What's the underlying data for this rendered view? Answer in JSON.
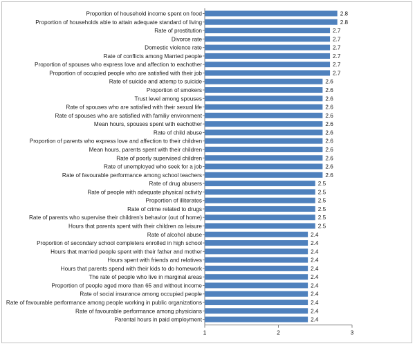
{
  "chart_data": {
    "type": "bar",
    "orientation": "horizontal",
    "bar_color": "#4f81bd",
    "categories": [
      "Proportion of household income spent on food",
      "Proportion of households able to attain adequate standard of living",
      "Rate of prostitution",
      "Divorce rate",
      "Domestic violence rate",
      "Rate of conflicts among Married people",
      "Proportion of spouses who express love and affection to eachother",
      "Proportion of occupied people who are satisfied with their job",
      "Rate of suicide and attemp to suicide",
      "Proportion of smokers",
      "Trust level among spouses",
      "Rate of spouses who are satisfied with their sexual life",
      "Rate of spouses who are satisfied with familiy environment",
      "Mean hours, spouses spent with eachother",
      "Rate of child abuse",
      "Proportion of parents who express love and affection to their children",
      "Mean hours, parents spent with their children",
      "Rate of poorly supervised children",
      "Rate of unemployed who seek for a job",
      "Rate of favourable performance among school teachers",
      "Rate of drug abusers",
      "Rate of people with adequate physical activity",
      "Proportion of illiterates",
      "Rate of crime related to drugs",
      "Rate of parents who supervise their children's behavior (out of home)",
      "Hours that parents spent with their children as leisure",
      "Rate of alcohol abuse",
      "Proportion of secondary school completers  enrolled in high school",
      "Hours that married people spent with their father and mother",
      "Hours spent with friends and relatives",
      "Hours that parents spend with their kids to do homework",
      "The rate of people who live in marginal areas",
      "Proportion of people aged more than 65 and without income",
      "Rate of social insurance among occupied people",
      "Rate of favourable performance among people working in public organizations",
      "Rate of favourable performance among physicians",
      "Parental hours in paid employment"
    ],
    "values": [
      2.8,
      2.8,
      2.7,
      2.7,
      2.7,
      2.7,
      2.7,
      2.7,
      2.6,
      2.6,
      2.6,
      2.6,
      2.6,
      2.6,
      2.6,
      2.6,
      2.6,
      2.6,
      2.6,
      2.6,
      2.5,
      2.5,
      2.5,
      2.5,
      2.5,
      2.5,
      2.4,
      2.4,
      2.4,
      2.4,
      2.4,
      2.4,
      2.4,
      2.4,
      2.4,
      2.4,
      2.4
    ],
    "value_labels": [
      "2.8",
      "2.8",
      "2.7",
      "2.7",
      "2.7",
      "2.7",
      "2.7",
      "2.7",
      "2.6",
      "2.6",
      "2.6",
      "2.6",
      "2.6",
      "2.6",
      "2.6",
      "2.6",
      "2.6",
      "2.6",
      "2.6",
      "2.6",
      "2.5",
      "2.5",
      "2.5",
      "2.5",
      "2.5",
      "2.5",
      "2.4",
      "2.4",
      "2.4",
      "2.4",
      "2.4",
      "2.4",
      "2.4",
      "2.4",
      "2.4",
      "2.4",
      "2.4"
    ],
    "xlim": [
      1,
      3
    ],
    "xticks": [
      1,
      2,
      3
    ],
    "xtick_labels": [
      "1",
      "2",
      "3"
    ],
    "title": "",
    "xlabel": "",
    "ylabel": "",
    "grid": false,
    "legend": "none"
  }
}
